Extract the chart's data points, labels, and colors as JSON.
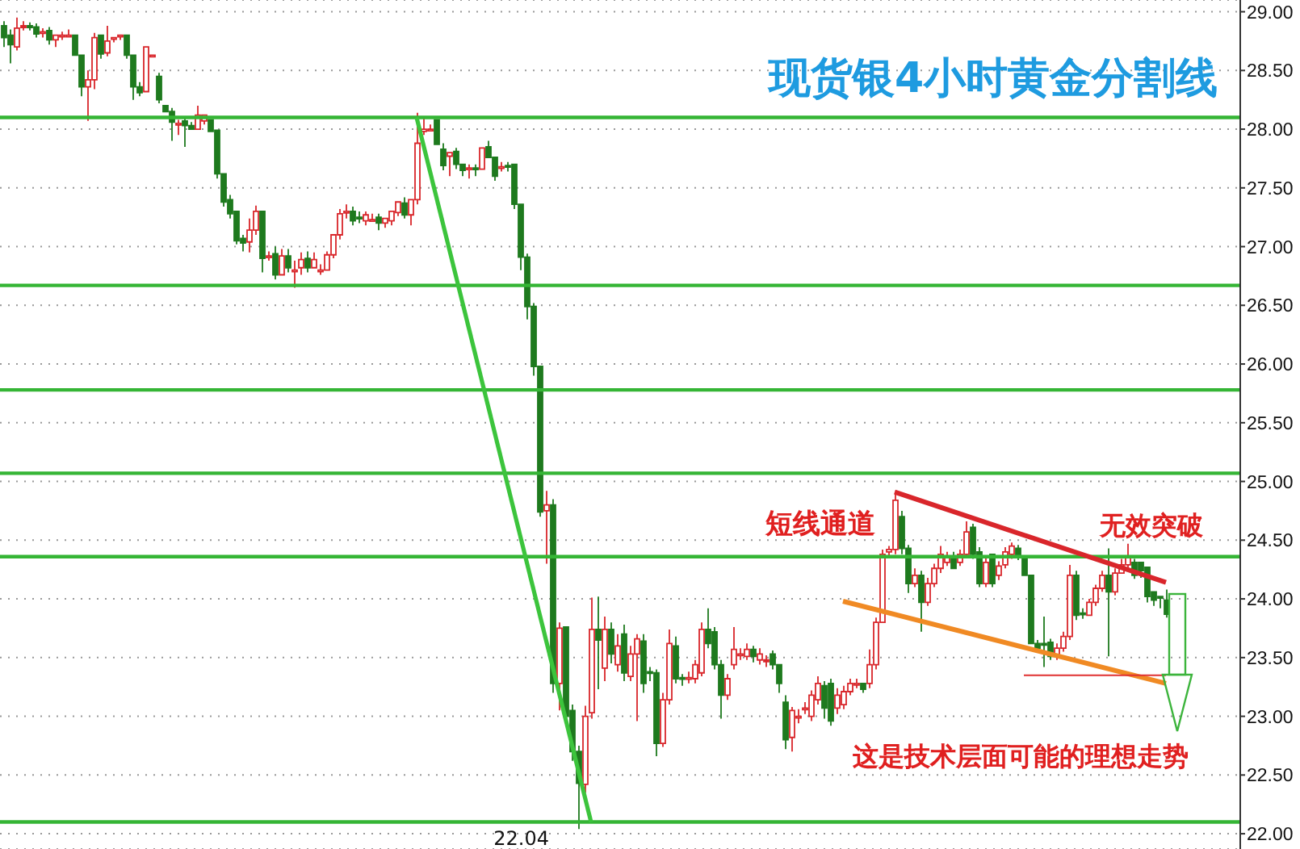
{
  "chart_data": {
    "type": "candlestick",
    "title": "现货银4小时黄金分割线",
    "categories": [
      null,
      null,
      null,
      null,
      null,
      null,
      null,
      null,
      null,
      null,
      null,
      null,
      null,
      null,
      null,
      null,
      null,
      null,
      null,
      null,
      null,
      null,
      null,
      null,
      null,
      null,
      null,
      null,
      null,
      null,
      null,
      null,
      null,
      null,
      null,
      null,
      null,
      null,
      null,
      null,
      null,
      null,
      null,
      null,
      null,
      null,
      null,
      null,
      null,
      null,
      null,
      null,
      null,
      null,
      null,
      null,
      null,
      null,
      null,
      null,
      null,
      null,
      null,
      null,
      null,
      null,
      null,
      null,
      null,
      null,
      null,
      null,
      null,
      null,
      null,
      null,
      null,
      null,
      null,
      null,
      null,
      null,
      null,
      null,
      null,
      null,
      null,
      null,
      null,
      null,
      null,
      null,
      null,
      null,
      null,
      null,
      null,
      null,
      null,
      null,
      null,
      null,
      null,
      null,
      null,
      null,
      null,
      null,
      null,
      null,
      null,
      null,
      null,
      null,
      null,
      null,
      null,
      null,
      null,
      null,
      null,
      null,
      null,
      null,
      null,
      null,
      null,
      null,
      null,
      null,
      null,
      null,
      null,
      null,
      null,
      null,
      null,
      null,
      null,
      null,
      null,
      null,
      null,
      null,
      null,
      null,
      null,
      null,
      null,
      null,
      null,
      null,
      null,
      null,
      null,
      null,
      null,
      null,
      null,
      null,
      null,
      null,
      null,
      null,
      null,
      null,
      null,
      null,
      null,
      null,
      null,
      null,
      null,
      null,
      null,
      null,
      null,
      null,
      null,
      null,
      null
    ],
    "ohlc": [
      [
        28.88,
        28.92,
        28.7,
        28.78
      ],
      [
        28.8,
        28.85,
        28.56,
        28.72
      ],
      [
        28.7,
        28.95,
        28.67,
        28.86
      ],
      [
        28.87,
        28.92,
        28.84,
        28.88
      ],
      [
        28.88,
        28.91,
        28.84,
        28.87
      ],
      [
        28.87,
        28.9,
        28.78,
        28.81
      ],
      [
        28.82,
        28.86,
        28.78,
        28.83
      ],
      [
        28.84,
        28.87,
        28.72,
        28.76
      ],
      [
        28.76,
        28.82,
        28.7,
        28.8
      ],
      [
        28.8,
        28.83,
        28.76,
        28.8
      ],
      [
        28.79,
        28.85,
        28.77,
        28.8
      ],
      [
        28.8,
        28.82,
        28.62,
        28.63
      ],
      [
        28.63,
        28.65,
        28.28,
        28.36
      ],
      [
        28.36,
        28.5,
        28.07,
        28.42
      ],
      [
        28.42,
        28.82,
        28.34,
        28.78
      ],
      [
        28.8,
        28.82,
        28.6,
        28.64
      ],
      [
        28.65,
        28.88,
        28.62,
        28.75
      ],
      [
        28.77,
        28.8,
        28.74,
        28.78
      ],
      [
        28.79,
        28.82,
        28.76,
        28.8
      ],
      [
        28.8,
        28.82,
        28.6,
        28.63
      ],
      [
        28.63,
        28.65,
        28.25,
        28.36
      ],
      [
        28.36,
        28.4,
        28.28,
        28.31
      ],
      [
        28.32,
        28.72,
        28.3,
        28.7
      ],
      [
        28.63,
        28.65,
        28.61,
        28.63
      ],
      [
        28.45,
        28.48,
        28.22,
        28.25
      ],
      [
        28.2,
        28.22,
        28.14,
        28.15
      ],
      [
        28.15,
        28.18,
        27.9,
        28.06
      ],
      [
        28.05,
        28.08,
        27.95,
        28.05
      ],
      [
        28.07,
        28.1,
        27.85,
        28.03
      ],
      [
        28.03,
        28.06,
        27.98,
        28.0
      ],
      [
        28.0,
        28.2,
        27.98,
        28.12
      ],
      [
        28.07,
        28.14,
        28.04,
        28.12
      ],
      [
        28.08,
        28.1,
        27.96,
        27.98
      ],
      [
        27.99,
        28.01,
        27.58,
        27.62
      ],
      [
        27.62,
        27.64,
        27.34,
        27.38
      ],
      [
        27.4,
        27.44,
        27.24,
        27.28
      ],
      [
        27.3,
        27.32,
        27.02,
        27.05
      ],
      [
        27.07,
        27.1,
        26.96,
        27.03
      ],
      [
        27.04,
        27.24,
        26.95,
        27.14
      ],
      [
        27.14,
        27.35,
        27.1,
        27.3
      ],
      [
        27.3,
        27.32,
        26.78,
        26.9
      ],
      [
        26.92,
        26.96,
        26.88,
        26.92
      ],
      [
        26.94,
        27.0,
        26.72,
        26.76
      ],
      [
        26.76,
        26.98,
        26.74,
        26.92
      ],
      [
        26.92,
        26.98,
        26.78,
        26.82
      ],
      [
        26.8,
        26.88,
        26.65,
        26.8
      ],
      [
        26.82,
        26.95,
        26.76,
        26.89
      ],
      [
        26.9,
        26.96,
        26.78,
        26.82
      ],
      [
        26.82,
        26.95,
        26.8,
        26.89
      ],
      [
        26.8,
        26.85,
        26.76,
        26.8
      ],
      [
        26.8,
        26.96,
        26.78,
        26.93
      ],
      [
        26.93,
        27.12,
        26.9,
        27.1
      ],
      [
        27.1,
        27.32,
        27.06,
        27.28
      ],
      [
        27.3,
        27.36,
        27.24,
        27.3
      ],
      [
        27.3,
        27.34,
        27.18,
        27.22
      ],
      [
        27.25,
        27.3,
        27.2,
        27.24
      ],
      [
        27.22,
        27.3,
        27.18,
        27.27
      ],
      [
        27.23,
        27.28,
        27.2,
        27.23
      ],
      [
        27.25,
        27.28,
        27.14,
        27.2
      ],
      [
        27.2,
        27.26,
        27.16,
        27.24
      ],
      [
        27.22,
        27.32,
        27.18,
        27.3
      ],
      [
        27.29,
        27.4,
        27.26,
        27.38
      ],
      [
        27.37,
        27.42,
        27.24,
        27.27
      ],
      [
        27.27,
        27.42,
        27.18,
        27.4
      ],
      [
        27.4,
        28.14,
        27.36,
        27.88
      ],
      [
        27.98,
        28.1,
        27.95,
        28.0
      ],
      [
        28.0,
        28.04,
        27.97,
        28.0
      ],
      [
        28.08,
        28.1,
        27.85,
        27.87
      ],
      [
        27.83,
        27.88,
        27.65,
        27.69
      ],
      [
        27.77,
        27.82,
        27.6,
        27.8
      ],
      [
        27.81,
        27.84,
        27.66,
        27.7
      ],
      [
        27.7,
        27.72,
        27.6,
        27.65
      ],
      [
        27.67,
        27.7,
        27.58,
        27.67
      ],
      [
        27.67,
        27.7,
        27.6,
        27.66
      ],
      [
        27.66,
        27.86,
        27.64,
        27.84
      ],
      [
        27.85,
        27.9,
        27.74,
        27.76
      ],
      [
        27.76,
        27.78,
        27.56,
        27.6
      ],
      [
        27.68,
        27.72,
        27.64,
        27.68
      ],
      [
        27.69,
        27.72,
        27.64,
        27.68
      ],
      [
        27.7,
        27.72,
        27.32,
        27.36
      ],
      [
        27.36,
        27.38,
        26.8,
        26.91
      ],
      [
        26.91,
        26.94,
        26.38,
        26.49
      ],
      [
        26.49,
        26.52,
        25.9,
        25.98
      ],
      [
        25.98,
        26.0,
        24.7,
        24.74
      ],
      [
        24.75,
        24.92,
        24.3,
        24.8
      ],
      [
        24.8,
        24.85,
        23.2,
        23.28
      ],
      [
        23.28,
        23.8,
        23.05,
        23.75
      ],
      [
        23.76,
        23.78,
        22.95,
        23.0
      ],
      [
        23.05,
        23.1,
        22.62,
        22.7
      ],
      [
        22.7,
        22.75,
        22.04,
        22.43
      ],
      [
        22.42,
        23.09,
        22.35,
        23.0
      ],
      [
        23.03,
        24.01,
        22.98,
        23.74
      ],
      [
        23.74,
        24.02,
        23.23,
        23.65
      ],
      [
        23.41,
        23.85,
        23.3,
        23.74
      ],
      [
        23.74,
        23.8,
        23.45,
        23.53
      ],
      [
        23.44,
        23.7,
        23.38,
        23.6
      ],
      [
        23.7,
        23.78,
        23.3,
        23.37
      ],
      [
        23.34,
        23.6,
        23.3,
        23.53
      ],
      [
        23.53,
        23.7,
        22.96,
        23.66
      ],
      [
        23.64,
        23.7,
        23.2,
        23.28
      ],
      [
        23.38,
        23.42,
        23.3,
        23.37
      ],
      [
        23.37,
        23.4,
        22.66,
        22.77
      ],
      [
        22.77,
        23.2,
        22.74,
        23.14
      ],
      [
        23.14,
        23.74,
        23.1,
        23.62
      ],
      [
        23.6,
        23.68,
        23.28,
        23.32
      ],
      [
        23.33,
        23.36,
        23.26,
        23.32
      ],
      [
        23.32,
        23.38,
        23.28,
        23.33
      ],
      [
        23.32,
        23.48,
        23.28,
        23.44
      ],
      [
        23.37,
        23.8,
        23.34,
        23.74
      ],
      [
        23.74,
        23.92,
        23.58,
        23.62
      ],
      [
        23.72,
        23.76,
        23.4,
        23.44
      ],
      [
        23.44,
        23.48,
        22.98,
        23.18
      ],
      [
        23.18,
        23.36,
        23.14,
        23.32
      ],
      [
        23.44,
        23.76,
        23.4,
        23.57
      ],
      [
        23.53,
        23.58,
        23.48,
        23.53
      ],
      [
        23.51,
        23.62,
        23.48,
        23.57
      ],
      [
        23.57,
        23.6,
        23.46,
        23.51
      ],
      [
        23.48,
        23.58,
        23.44,
        23.53
      ],
      [
        23.48,
        23.52,
        23.42,
        23.48
      ],
      [
        23.53,
        23.56,
        23.4,
        23.44
      ],
      [
        23.44,
        23.46,
        23.2,
        23.28
      ],
      [
        23.12,
        23.18,
        22.72,
        22.8
      ],
      [
        22.82,
        23.08,
        22.7,
        23.05
      ],
      [
        23.0,
        23.06,
        22.94,
        23.0
      ],
      [
        23.07,
        23.12,
        23.02,
        23.07
      ],
      [
        23.0,
        23.22,
        22.96,
        23.18
      ],
      [
        23.14,
        23.34,
        23.1,
        23.28
      ],
      [
        23.26,
        23.3,
        22.98,
        23.07
      ],
      [
        23.28,
        23.32,
        22.92,
        22.96
      ],
      [
        23.07,
        23.24,
        23.02,
        23.18
      ],
      [
        23.1,
        23.26,
        23.06,
        23.21
      ],
      [
        23.21,
        23.32,
        23.18,
        23.28
      ],
      [
        23.28,
        23.32,
        23.24,
        23.28
      ],
      [
        23.28,
        23.3,
        23.2,
        23.23
      ],
      [
        23.28,
        23.57,
        23.24,
        23.44
      ],
      [
        23.44,
        23.84,
        23.4,
        23.8
      ],
      [
        23.8,
        24.42,
        23.78,
        24.38
      ],
      [
        24.4,
        24.45,
        24.36,
        24.42
      ],
      [
        24.42,
        24.91,
        24.38,
        24.84
      ],
      [
        24.7,
        24.75,
        24.38,
        24.43
      ],
      [
        24.43,
        24.46,
        24.05,
        24.13
      ],
      [
        24.13,
        24.26,
        24.1,
        24.2
      ],
      [
        24.2,
        24.24,
        23.72,
        23.97
      ],
      [
        23.97,
        24.18,
        23.94,
        24.13
      ],
      [
        24.13,
        24.3,
        24.1,
        24.26
      ],
      [
        24.26,
        24.45,
        24.22,
        24.38
      ],
      [
        24.31,
        24.4,
        24.28,
        24.36
      ],
      [
        24.36,
        24.4,
        24.24,
        24.26
      ],
      [
        24.31,
        24.42,
        24.28,
        24.38
      ],
      [
        24.38,
        24.66,
        24.35,
        24.57
      ],
      [
        24.61,
        24.64,
        24.34,
        24.38
      ],
      [
        24.4,
        24.44,
        24.1,
        24.13
      ],
      [
        24.13,
        24.36,
        24.1,
        24.31
      ],
      [
        24.38,
        24.4,
        24.1,
        24.13
      ],
      [
        24.2,
        24.32,
        24.16,
        24.28
      ],
      [
        24.29,
        24.44,
        24.26,
        24.4
      ],
      [
        24.38,
        24.48,
        24.34,
        24.45
      ],
      [
        24.43,
        24.46,
        24.33,
        24.36
      ],
      [
        24.36,
        24.38,
        24.18,
        24.2
      ],
      [
        24.2,
        24.22,
        23.6,
        23.62
      ],
      [
        23.62,
        23.65,
        23.55,
        23.58
      ],
      [
        23.62,
        23.85,
        23.42,
        23.61
      ],
      [
        23.63,
        23.66,
        23.48,
        23.51
      ],
      [
        23.51,
        23.62,
        23.48,
        23.58
      ],
      [
        23.58,
        23.72,
        23.55,
        23.68
      ],
      [
        23.68,
        24.29,
        23.65,
        24.2
      ],
      [
        24.2,
        24.24,
        23.82,
        23.86
      ],
      [
        23.88,
        23.92,
        23.83,
        23.87
      ],
      [
        23.86,
        24.0,
        23.84,
        23.97
      ],
      [
        23.97,
        24.12,
        23.94,
        24.09
      ],
      [
        24.09,
        24.24,
        24.06,
        24.2
      ],
      [
        24.2,
        24.43,
        23.51,
        24.06
      ],
      [
        24.06,
        24.26,
        24.03,
        24.22
      ],
      [
        24.22,
        24.34,
        24.2,
        24.29
      ],
      [
        24.29,
        24.47,
        24.26,
        24.36
      ],
      [
        24.31,
        24.34,
        24.17,
        24.2
      ],
      [
        24.31,
        24.33,
        24.18,
        24.24
      ],
      [
        24.27,
        24.29,
        23.97,
        24.02
      ],
      [
        24.06,
        24.08,
        23.94,
        23.99
      ],
      [
        24.02,
        24.04,
        23.92,
        24.01
      ],
      [
        23.99,
        24.08,
        23.84,
        23.87
      ]
    ],
    "colors": [
      "#1e7a1e",
      "#1e7a1e",
      "#d9262b",
      "#d9262b",
      "#1e7a1e",
      "#1e7a1e",
      "#d9262b",
      "#1e7a1e",
      "#d9262b",
      "#d9262b",
      "#d9262b",
      "#1e7a1e",
      "#1e7a1e",
      "#d9262b",
      "#d9262b",
      "#1e7a1e",
      "#d9262b",
      "#d9262b",
      "#d9262b",
      "#1e7a1e",
      "#1e7a1e",
      "#1e7a1e",
      "#d9262b",
      "#d9262b",
      "#1e7a1e",
      "#1e7a1e",
      "#1e7a1e",
      "#d9262b",
      "#1e7a1e",
      "#1e7a1e",
      "#d9262b",
      "#d9262b",
      "#1e7a1e",
      "#1e7a1e",
      "#1e7a1e",
      "#1e7a1e",
      "#1e7a1e",
      "#1e7a1e",
      "#d9262b",
      "#d9262b",
      "#1e7a1e",
      "#d9262b",
      "#1e7a1e",
      "#d9262b",
      "#1e7a1e",
      "#d9262b",
      "#d9262b",
      "#1e7a1e",
      "#d9262b",
      "#d9262b",
      "#d9262b",
      "#d9262b",
      "#d9262b",
      "#d9262b",
      "#1e7a1e",
      "#1e7a1e",
      "#d9262b",
      "#d9262b",
      "#1e7a1e",
      "#d9262b",
      "#d9262b",
      "#d9262b",
      "#1e7a1e",
      "#d9262b",
      "#d9262b",
      "#d9262b",
      "#d9262b",
      "#1e7a1e",
      "#1e7a1e",
      "#d9262b",
      "#1e7a1e",
      "#1e7a1e",
      "#d9262b",
      "#1e7a1e",
      "#d9262b",
      "#1e7a1e",
      "#1e7a1e",
      "#d9262b",
      "#1e7a1e",
      "#1e7a1e",
      "#1e7a1e",
      "#1e7a1e",
      "#1e7a1e",
      "#1e7a1e",
      "#d9262b",
      "#1e7a1e",
      "#d9262b",
      "#1e7a1e",
      "#1e7a1e",
      "#1e7a1e",
      "#d9262b",
      "#d9262b",
      "#1e7a1e",
      "#d9262b",
      "#1e7a1e",
      "#d9262b",
      "#1e7a1e",
      "#d9262b",
      "#d9262b",
      "#1e7a1e",
      "#1e7a1e",
      "#1e7a1e",
      "#d9262b",
      "#d9262b",
      "#1e7a1e",
      "#1e7a1e",
      "#d9262b",
      "#d9262b",
      "#d9262b",
      "#1e7a1e",
      "#1e7a1e",
      "#1e7a1e",
      "#d9262b",
      "#d9262b",
      "#d9262b",
      "#d9262b",
      "#1e7a1e",
      "#d9262b",
      "#d9262b",
      "#1e7a1e",
      "#1e7a1e",
      "#1e7a1e",
      "#d9262b",
      "#d9262b",
      "#d9262b",
      "#d9262b",
      "#d9262b",
      "#1e7a1e",
      "#1e7a1e",
      "#d9262b",
      "#d9262b",
      "#d9262b",
      "#d9262b",
      "#1e7a1e",
      "#d9262b",
      "#d9262b",
      "#d9262b",
      "#d9262b",
      "#d9262b",
      "#1e7a1e",
      "#1e7a1e",
      "#d9262b",
      "#1e7a1e",
      "#d9262b",
      "#d9262b",
      "#d9262b",
      "#d9262b",
      "#1e7a1e",
      "#d9262b",
      "#d9262b",
      "#1e7a1e",
      "#1e7a1e",
      "#d9262b",
      "#1e7a1e",
      "#d9262b",
      "#d9262b",
      "#d9262b",
      "#1e7a1e",
      "#1e7a1e",
      "#1e7a1e",
      "#1e7a1e",
      "#1e7a1e",
      "#1e7a1e",
      "#d9262b",
      "#d9262b",
      "#d9262b",
      "#1e7a1e",
      "#1e7a1e",
      "#d9262b",
      "#d9262b",
      "#d9262b",
      "#1e7a1e",
      "#d9262b",
      "#d9262b",
      "#d9262b",
      "#1e7a1e",
      "#1e7a1e",
      "#1e7a1e",
      "#1e7a1e",
      "#1e7a1e",
      "#1e7a1e"
    ],
    "ylim": [
      21.87,
      29.1
    ],
    "yticks": [
      {
        "value": 22,
        "label": "22.00"
      },
      {
        "value": 22.5,
        "label": "22.50"
      },
      {
        "value": 23,
        "label": "23.00"
      },
      {
        "value": 23.5,
        "label": "23.50"
      },
      {
        "value": 24,
        "label": "24.00"
      },
      {
        "value": 24.5,
        "label": "24.50"
      },
      {
        "value": 25,
        "label": "25.00"
      },
      {
        "value": 25.5,
        "label": "25.50"
      },
      {
        "value": 26,
        "label": "26.00"
      },
      {
        "value": 26.5,
        "label": "26.50"
      },
      {
        "value": 27,
        "label": "27.00"
      },
      {
        "value": 27.5,
        "label": "27.50"
      },
      {
        "value": 28,
        "label": "28.00"
      },
      {
        "value": 28.5,
        "label": "28.50"
      },
      {
        "value": 29,
        "label": "29.00"
      }
    ],
    "tick_labels": "y",
    "grid": "y",
    "ref_lines": [
      {
        "axis": "y",
        "value": 28.1,
        "color": "#35b535"
      },
      {
        "axis": "y",
        "value": 26.67,
        "color": "#35b535"
      },
      {
        "axis": "y",
        "value": 25.78,
        "color": "#35b535"
      },
      {
        "axis": "y",
        "value": 25.07,
        "color": "#35b535"
      },
      {
        "axis": "y",
        "value": 24.36,
        "color": "#35b535"
      },
      {
        "axis": "y",
        "value": 22.1,
        "color": "#35b535"
      }
    ],
    "series": [
      {
        "type": "line",
        "color": "#3cc43c",
        "values": [
          null,
          null,
          null,
          null,
          null,
          null,
          null,
          null,
          null,
          null,
          null,
          null,
          null,
          null,
          null,
          null,
          null,
          null,
          null,
          null,
          null,
          null,
          null,
          null,
          null,
          null,
          null,
          null,
          null,
          null,
          null,
          null,
          null,
          null,
          null,
          null,
          null,
          null,
          null,
          null,
          null,
          null,
          null,
          null,
          null,
          null,
          null,
          null,
          null,
          null,
          null,
          null,
          null,
          null,
          null,
          null,
          null,
          null,
          null,
          null,
          null,
          null,
          null,
          null,
          28.1,
          null,
          null,
          null,
          null,
          null,
          null,
          null,
          null,
          null,
          null,
          null,
          null,
          null,
          null,
          null,
          null,
          null,
          null,
          null,
          null,
          null,
          null,
          null,
          null,
          null,
          null,
          22.1,
          null,
          null,
          null,
          null,
          null,
          null,
          null,
          null,
          null,
          null,
          null,
          null,
          null,
          null,
          null,
          null,
          null,
          null,
          null,
          null,
          null,
          null,
          null,
          null,
          null,
          null,
          null,
          null,
          null,
          null,
          null,
          null,
          null,
          null,
          null,
          null,
          null,
          null,
          null,
          null,
          null,
          null,
          null,
          null,
          null,
          null,
          null,
          null,
          null,
          null,
          null,
          null,
          null,
          null,
          null,
          null,
          null,
          null,
          null,
          null,
          null,
          null,
          null,
          null,
          null,
          null,
          null,
          null,
          null,
          null,
          null,
          null,
          null,
          null,
          null,
          null,
          null,
          null,
          null,
          null,
          null,
          null,
          null,
          null,
          null,
          null,
          null,
          null,
          null
        ]
      },
      {
        "type": "line",
        "color": "#d9262b",
        "values": [
          null,
          null,
          null,
          null,
          null,
          null,
          null,
          null,
          null,
          null,
          null,
          null,
          null,
          null,
          null,
          null,
          null,
          null,
          null,
          null,
          null,
          null,
          null,
          null,
          null,
          null,
          null,
          null,
          null,
          null,
          null,
          null,
          null,
          null,
          null,
          null,
          null,
          null,
          null,
          null,
          null,
          null,
          null,
          null,
          null,
          null,
          null,
          null,
          null,
          null,
          null,
          null,
          null,
          null,
          null,
          null,
          null,
          null,
          null,
          null,
          null,
          null,
          null,
          null,
          null,
          null,
          null,
          null,
          null,
          null,
          null,
          null,
          null,
          null,
          null,
          null,
          null,
          null,
          null,
          null,
          null,
          null,
          null,
          null,
          null,
          null,
          null,
          null,
          null,
          null,
          null,
          null,
          null,
          null,
          null,
          null,
          null,
          null,
          null,
          null,
          null,
          null,
          null,
          null,
          null,
          null,
          null,
          null,
          null,
          null,
          null,
          null,
          null,
          null,
          null,
          null,
          null,
          null,
          null,
          null,
          null,
          null,
          null,
          null,
          null,
          null,
          null,
          null,
          null,
          null,
          null,
          null,
          null,
          null,
          null,
          null,
          null,
          null,
          24.91,
          null,
          null,
          null,
          null,
          null,
          null,
          null,
          null,
          null,
          null,
          null,
          null,
          null,
          null,
          null,
          null,
          null,
          null,
          null,
          null,
          null,
          null,
          null,
          null,
          null,
          null,
          null,
          null,
          null,
          null,
          null,
          null,
          null,
          null,
          null,
          null,
          null,
          null,
          null,
          null,
          null,
          24.14
        ]
      },
      {
        "type": "line",
        "color": "#f08a24",
        "values": [
          null,
          null,
          null,
          null,
          null,
          null,
          null,
          null,
          null,
          null,
          null,
          null,
          null,
          null,
          null,
          null,
          null,
          null,
          null,
          null,
          null,
          null,
          null,
          null,
          null,
          null,
          null,
          null,
          null,
          null,
          null,
          null,
          null,
          null,
          null,
          null,
          null,
          null,
          null,
          null,
          null,
          null,
          null,
          null,
          null,
          null,
          null,
          null,
          null,
          null,
          null,
          null,
          null,
          null,
          null,
          null,
          null,
          null,
          null,
          null,
          null,
          null,
          null,
          null,
          null,
          null,
          null,
          null,
          null,
          null,
          null,
          null,
          null,
          null,
          null,
          null,
          null,
          null,
          null,
          null,
          null,
          null,
          null,
          null,
          null,
          null,
          null,
          null,
          null,
          null,
          null,
          null,
          null,
          null,
          null,
          null,
          null,
          null,
          null,
          null,
          null,
          null,
          null,
          null,
          null,
          null,
          null,
          null,
          null,
          null,
          null,
          null,
          null,
          null,
          null,
          null,
          null,
          null,
          null,
          null,
          null,
          null,
          null,
          null,
          null,
          null,
          null,
          null,
          null,
          null,
          23.98,
          null,
          null,
          null,
          null,
          null,
          null,
          null,
          null,
          null,
          null,
          null,
          null,
          null,
          null,
          null,
          null,
          null,
          null,
          null,
          null,
          null,
          null,
          null,
          null,
          null,
          null,
          null,
          null,
          null,
          null,
          null,
          null,
          null,
          null,
          null,
          null,
          null,
          null,
          null,
          null,
          null,
          null,
          null,
          null,
          null,
          null,
          null,
          null,
          null,
          23.28
        ]
      },
      {
        "type": "line",
        "color": "#e03030",
        "values": [
          null,
          null,
          null,
          null,
          null,
          null,
          null,
          null,
          null,
          null,
          null,
          null,
          null,
          null,
          null,
          null,
          null,
          null,
          null,
          null,
          null,
          null,
          null,
          null,
          null,
          null,
          null,
          null,
          null,
          null,
          null,
          null,
          null,
          null,
          null,
          null,
          null,
          null,
          null,
          null,
          null,
          null,
          null,
          null,
          null,
          null,
          null,
          null,
          null,
          null,
          null,
          null,
          null,
          null,
          null,
          null,
          null,
          null,
          null,
          null,
          null,
          null,
          null,
          null,
          null,
          null,
          null,
          null,
          null,
          null,
          null,
          null,
          null,
          null,
          null,
          null,
          null,
          null,
          null,
          null,
          null,
          null,
          null,
          null,
          null,
          null,
          null,
          null,
          null,
          null,
          null,
          null,
          null,
          null,
          null,
          null,
          null,
          null,
          null,
          null,
          null,
          null,
          null,
          null,
          null,
          null,
          null,
          null,
          null,
          null,
          null,
          null,
          null,
          null,
          null,
          null,
          null,
          null,
          null,
          null,
          null,
          null,
          null,
          null,
          null,
          null,
          null,
          null,
          null,
          null,
          null,
          null,
          null,
          null,
          null,
          null,
          null,
          null,
          null,
          null,
          null,
          null,
          null,
          null,
          null,
          null,
          null,
          null,
          null,
          null,
          null,
          null,
          null,
          null,
          null,
          null,
          null,
          null,
          23.35,
          null,
          null,
          null,
          null,
          null,
          null,
          null,
          null,
          null,
          null,
          null,
          null,
          null,
          null,
          null,
          null,
          null,
          null,
          null,
          null,
          null,
          23.35
        ]
      }
    ],
    "annotations": [
      "短线通道",
      "无效突破",
      "这是技术层面可能的理想走势",
      {
        "text": "22.04",
        "y": 22.04
      }
    ]
  }
}
